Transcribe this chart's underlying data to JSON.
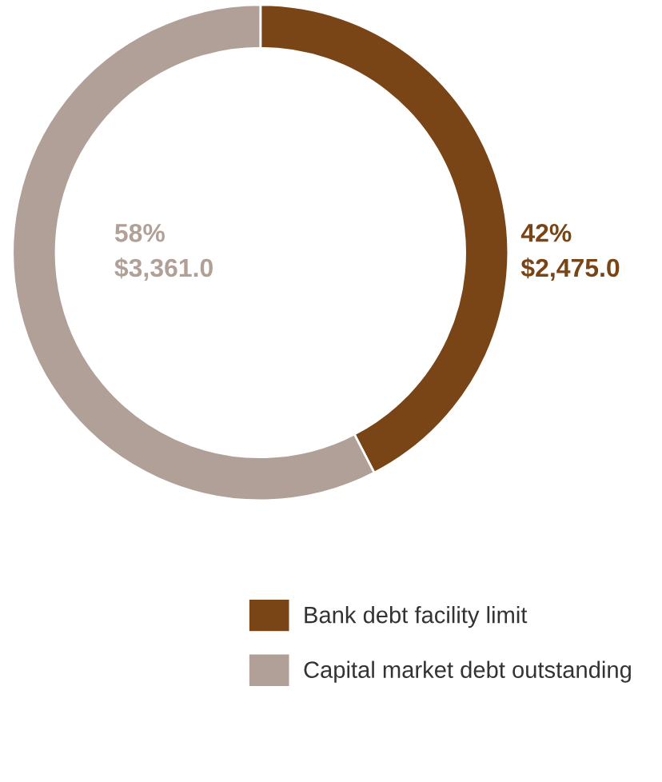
{
  "chart_data": {
    "type": "donut",
    "categories": [
      "Bank debt facility limit",
      "Capital market debt outstanding"
    ],
    "values": [
      2475.0,
      3361.0
    ],
    "colors": [
      "#7a4516",
      "#b1a097"
    ],
    "value_labels": [
      "42%\n$2,475.0",
      "58%\n$3,361.0"
    ],
    "legend": "bottom right"
  }
}
